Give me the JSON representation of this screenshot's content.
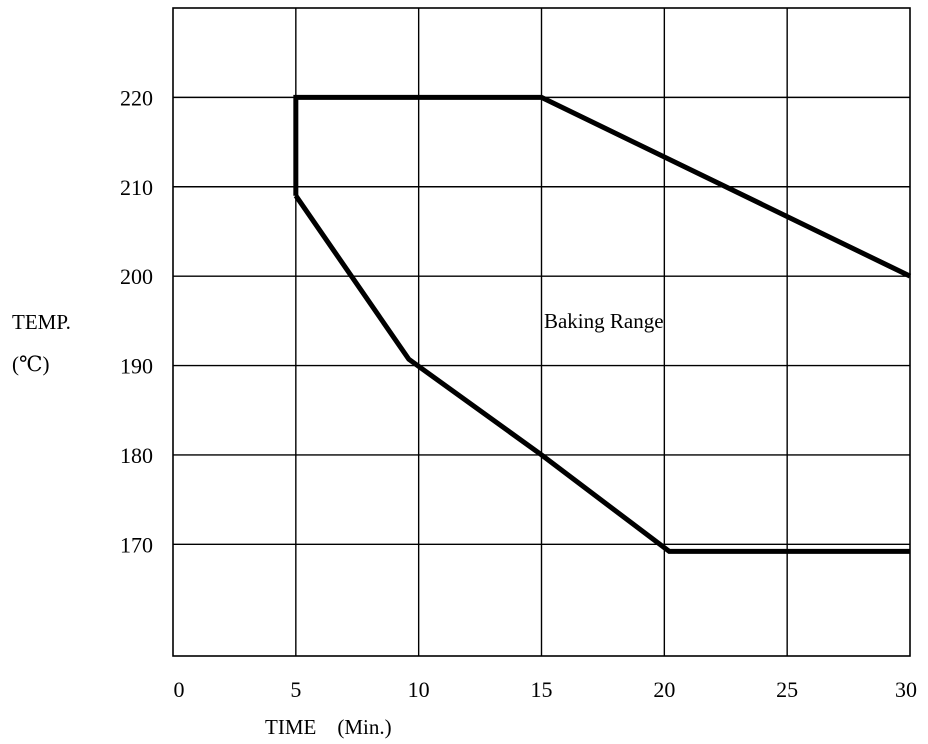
{
  "chart_data": {
    "type": "line",
    "title": "",
    "xlabel": "TIME    (Min.)",
    "ylabel_line1": "TEMP.",
    "ylabel_line2": "(℃)",
    "xlim": [
      0,
      30
    ],
    "ylim": [
      157.5,
      230
    ],
    "x_ticks": [
      {
        "value": 0,
        "label": "0"
      },
      {
        "value": 5,
        "label": "5"
      },
      {
        "value": 10,
        "label": "10"
      },
      {
        "value": 15,
        "label": "15"
      },
      {
        "value": 20,
        "label": "20"
      },
      {
        "value": 25,
        "label": "25"
      },
      {
        "value": 30,
        "label": "30"
      }
    ],
    "y_ticks": [
      {
        "value": 220,
        "label": "220"
      },
      {
        "value": 210,
        "label": "210"
      },
      {
        "value": 200,
        "label": "200"
      },
      {
        "value": 190,
        "label": "190"
      },
      {
        "value": 180,
        "label": "180"
      },
      {
        "value": 170,
        "label": "170"
      }
    ],
    "grid": true,
    "annotation": {
      "text": "Baking Range",
      "x": 15.1,
      "y": 194.2
    },
    "series": [
      {
        "points": [
          {
            "x": 5,
            "y": 209
          },
          {
            "x": 5,
            "y": 220
          },
          {
            "x": 15,
            "y": 220
          },
          {
            "x": 30,
            "y": 200
          }
        ]
      },
      {
        "points": [
          {
            "x": 5,
            "y": 209
          },
          {
            "x": 9.6,
            "y": 190.7
          },
          {
            "x": 15,
            "y": 180
          },
          {
            "x": 20.2,
            "y": 169.2
          },
          {
            "x": 30,
            "y": 169.2
          }
        ]
      }
    ]
  }
}
